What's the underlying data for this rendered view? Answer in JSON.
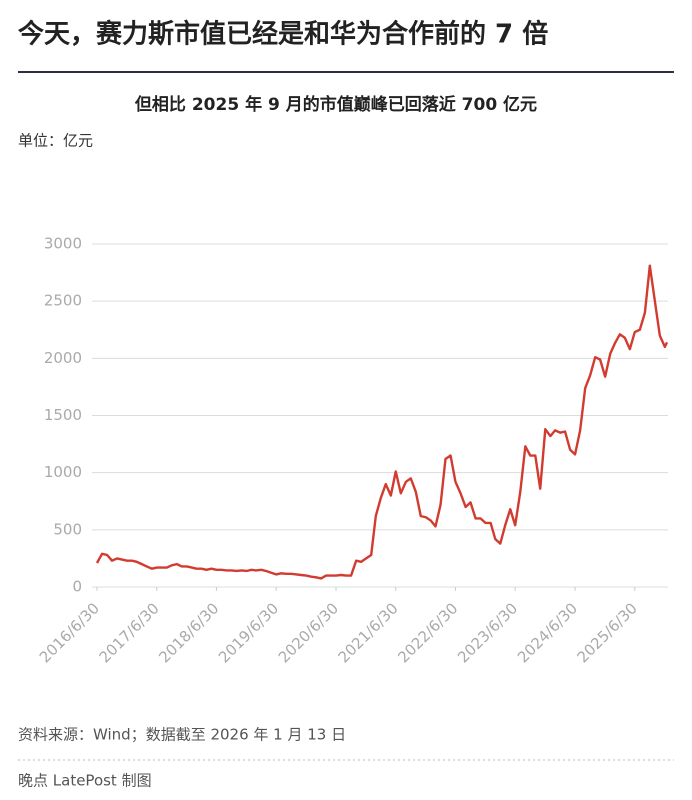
{
  "title": "今天，赛力斯市值已经是和华为合作前的 7 倍",
  "source": "资料来源：Wind；数据截至 2026 年 1 月 13 日",
  "credit": "晚点 LatePost 制图",
  "chart_data": {
    "type": "line",
    "title": "但相比 2025 年 9 月的市值巅峰已回落近 700 亿元",
    "y_label": "单位：亿元",
    "x": [
      "2016/6/30",
      "2016/7/31",
      "2016/8/31",
      "2016/9/30",
      "2016/10/31",
      "2016/11/30",
      "2016/12/31",
      "2017/1/31",
      "2017/2/28",
      "2017/3/31",
      "2017/4/30",
      "2017/5/31",
      "2017/6/30",
      "2017/7/31",
      "2017/8/31",
      "2017/9/30",
      "2017/10/31",
      "2017/11/30",
      "2017/12/31",
      "2018/1/31",
      "2018/2/28",
      "2018/3/31",
      "2018/4/30",
      "2018/5/31",
      "2018/6/30",
      "2018/7/31",
      "2018/8/31",
      "2018/9/30",
      "2018/10/31",
      "2018/11/30",
      "2018/12/31",
      "2019/1/31",
      "2019/2/28",
      "2019/3/31",
      "2019/4/30",
      "2019/5/31",
      "2019/6/30",
      "2019/7/31",
      "2019/8/31",
      "2019/9/30",
      "2019/10/31",
      "2019/11/30",
      "2019/12/31",
      "2020/1/31",
      "2020/2/29",
      "2020/3/31",
      "2020/4/30",
      "2020/5/31",
      "2020/6/30",
      "2020/7/31",
      "2020/8/31",
      "2020/9/30",
      "2020/10/31",
      "2020/11/30",
      "2020/12/31",
      "2021/1/31",
      "2021/2/28",
      "2021/3/31",
      "2021/4/30",
      "2021/5/31",
      "2021/6/30",
      "2021/7/31",
      "2021/8/31",
      "2021/9/30",
      "2021/10/31",
      "2021/11/30",
      "2021/12/31",
      "2022/1/31",
      "2022/2/28",
      "2022/3/31",
      "2022/4/30",
      "2022/5/31",
      "2022/6/30",
      "2022/7/31",
      "2022/8/31",
      "2022/9/30",
      "2022/10/31",
      "2022/11/30",
      "2022/12/31",
      "2023/1/31",
      "2023/2/28",
      "2023/3/31",
      "2023/4/30",
      "2023/5/31",
      "2023/6/30",
      "2023/7/31",
      "2023/8/31",
      "2023/9/30",
      "2023/10/31",
      "2023/11/30",
      "2023/12/31",
      "2024/1/31",
      "2024/2/29",
      "2024/3/31",
      "2024/4/30",
      "2024/5/31",
      "2024/6/30",
      "2024/7/31",
      "2024/8/31",
      "2024/9/30",
      "2024/10/31",
      "2024/11/30",
      "2024/12/31",
      "2025/1/31",
      "2025/2/28",
      "2025/3/31",
      "2025/4/30",
      "2025/5/31",
      "2025/6/30",
      "2025/7/31",
      "2025/8/31",
      "2025/9/30",
      "2025/10/31",
      "2025/11/30",
      "2025/12/31",
      "2026/1/13"
    ],
    "series": [
      {
        "name": "赛力斯市值",
        "color": "#d23b2f",
        "values": [
          210,
          290,
          280,
          230,
          250,
          240,
          230,
          230,
          220,
          200,
          180,
          160,
          170,
          170,
          170,
          190,
          200,
          180,
          180,
          170,
          160,
          160,
          150,
          160,
          150,
          150,
          145,
          145,
          140,
          145,
          140,
          150,
          145,
          150,
          140,
          125,
          110,
          120,
          115,
          115,
          110,
          105,
          100,
          90,
          85,
          75,
          100,
          100,
          100,
          105,
          100,
          100,
          230,
          220,
          250,
          280,
          620,
          780,
          900,
          800,
          1010,
          820,
          920,
          950,
          830,
          620,
          610,
          580,
          530,
          720,
          1120,
          1150,
          920,
          820,
          700,
          740,
          600,
          600,
          560,
          560,
          420,
          380,
          540,
          680,
          540,
          830,
          1230,
          1150,
          1150,
          860,
          1380,
          1320,
          1370,
          1350,
          1360,
          1200,
          1160,
          1370,
          1740,
          1850,
          2010,
          1990,
          1840,
          2040,
          2130,
          2210,
          2180,
          2080,
          2230,
          2250,
          2400,
          2810,
          2500,
          2200,
          2100,
          2140
        ]
      }
    ],
    "xlim": [
      "2016/6/30",
      "2026/1/13"
    ],
    "xticks": [
      "2016/6/30",
      "2017/6/30",
      "2018/6/30",
      "2019/6/30",
      "2020/6/30",
      "2021/6/30",
      "2022/6/30",
      "2023/6/30",
      "2024/6/30",
      "2025/6/30"
    ],
    "ylim": [
      0,
      3000
    ],
    "yticks": [
      0,
      500,
      1000,
      1500,
      2000,
      2500,
      3000
    ],
    "grid": true
  }
}
